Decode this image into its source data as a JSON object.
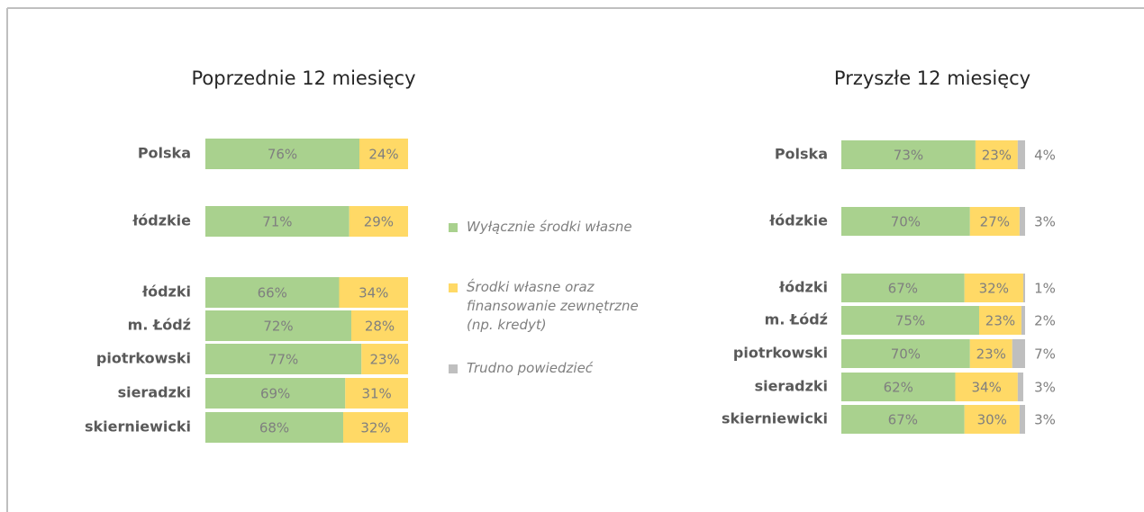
{
  "chart_data": [
    {
      "type": "stacked-bar-horizontal",
      "title": "Poprzednie 12 miesięcy",
      "categories": [
        "Polska",
        "łódzkie",
        "łódzki",
        "m. Łódź",
        "piotrkowski",
        "sieradzki",
        "skierniewicki"
      ],
      "xlim": [
        0,
        100
      ],
      "series": [
        {
          "color": "#a9d18e",
          "values": [
            76,
            71,
            66,
            72,
            77,
            69,
            68
          ],
          "value_labels": [
            "76%",
            "71%",
            "66%",
            "72%",
            "77%",
            "69%",
            "68%"
          ]
        },
        {
          "color": "#ffd966",
          "values": [
            24,
            29,
            34,
            28,
            23,
            31,
            32
          ],
          "value_labels": [
            "24%",
            "29%",
            "34%",
            "28%",
            "23%",
            "31%",
            "32%"
          ]
        }
      ]
    },
    {
      "type": "stacked-bar-horizontal",
      "title": "Przyszłe 12 miesięcy",
      "categories": [
        "Polska",
        "łódzkie",
        "łódzki",
        "m. Łódź",
        "piotrkowski",
        "sieradzki",
        "skierniewicki"
      ],
      "xlim": [
        0,
        100
      ],
      "legend": "center-left",
      "series": [
        {
          "name": "Wyłącznie środki własne",
          "color": "#a9d18e",
          "values": [
            73,
            70,
            67,
            75,
            70,
            62,
            67
          ],
          "value_labels": [
            "73%",
            "70%",
            "67%",
            "75%",
            "70%",
            "62%",
            "67%"
          ]
        },
        {
          "name": "Środki własne oraz finansowanie zewnętrzne (np. kredyt)",
          "color": "#ffd966",
          "values": [
            23,
            27,
            32,
            23,
            23,
            34,
            30
          ],
          "value_labels": [
            "23%",
            "27%",
            "32%",
            "23%",
            "23%",
            "34%",
            "30%"
          ]
        },
        {
          "name": "Trudno powiedzieć",
          "color": "#bfbfbf",
          "values": [
            4,
            3,
            1,
            2,
            7,
            3,
            3
          ],
          "value_labels": [
            "4%",
            "3%",
            "1%",
            "2%",
            "7%",
            "3%",
            "3%"
          ]
        }
      ]
    }
  ]
}
